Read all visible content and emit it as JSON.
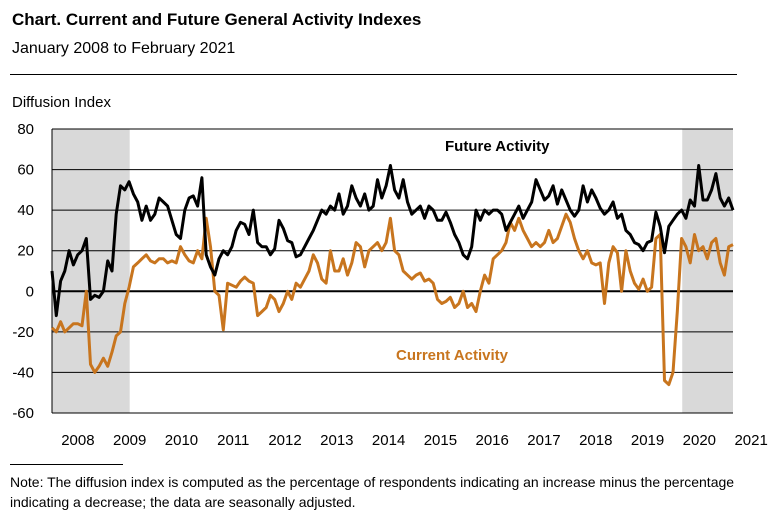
{
  "chart_data": {
    "type": "line",
    "title": "Chart. Current and Future General Activity Indexes",
    "subtitle": "January 2008 to February 2021",
    "ylabel": "Diffusion Index",
    "xlabel": "",
    "ylim": [
      -60,
      80
    ],
    "yticks": [
      80,
      60,
      40,
      20,
      0,
      -20,
      -40,
      -60
    ],
    "x_tick_labels": [
      "2008",
      "2009",
      "2010",
      "2011",
      "2012",
      "2013",
      "2014",
      "2015",
      "2016",
      "2017",
      "2018",
      "2019",
      "2020",
      "2021"
    ],
    "x_start": 2008.0,
    "x_end": 2021.15,
    "recessions": [
      {
        "start": 2008.0,
        "end": 2009.5
      },
      {
        "start": 2020.17,
        "end": 2021.15
      }
    ],
    "zero_line": true,
    "grid": "horizontal",
    "note": "Note: The diffusion index is computed as the percentage of respondents indicating an increase minus the percentage indicating a decrease; the data are seasonally adjusted.",
    "series": [
      {
        "name": "Future Activity",
        "color": "#000000",
        "label_position": "top-right",
        "values": [
          10,
          -12,
          5,
          10,
          20,
          13,
          18,
          20,
          26,
          -4,
          -2,
          -3,
          0,
          15,
          10,
          38,
          52,
          50,
          54,
          48,
          44,
          35,
          42,
          35,
          38,
          46,
          44,
          42,
          35,
          28,
          26,
          40,
          46,
          47,
          42,
          56,
          18,
          12,
          8,
          16,
          20,
          18,
          22,
          30,
          34,
          33,
          28,
          40,
          24,
          22,
          22,
          18,
          21,
          35,
          31,
          25,
          24,
          17,
          18,
          22,
          26,
          30,
          35,
          40,
          38,
          42,
          40,
          48,
          38,
          42,
          52,
          46,
          42,
          48,
          40,
          42,
          55,
          46,
          52,
          62,
          50,
          46,
          55,
          44,
          38,
          40,
          42,
          36,
          42,
          40,
          35,
          35,
          39,
          34,
          28,
          24,
          18,
          16,
          22,
          40,
          35,
          40,
          38,
          40,
          40,
          38,
          30,
          34,
          38,
          42,
          36,
          40,
          44,
          55,
          50,
          45,
          47,
          52,
          43,
          50,
          45,
          40,
          37,
          40,
          52,
          44,
          50,
          46,
          41,
          38,
          40,
          44,
          36,
          38,
          30,
          28,
          24,
          23,
          20,
          24,
          25,
          39,
          32,
          19,
          32,
          35,
          38,
          40,
          36,
          45,
          42,
          62,
          45,
          45,
          50,
          58,
          46,
          42,
          46,
          40
        ]
      },
      {
        "name": "Current Activity",
        "color": "#c8751e",
        "label_position": "bottom-center",
        "values": [
          -18,
          -20,
          -15,
          -20,
          -18,
          -16,
          -16,
          -17,
          0,
          -36,
          -40,
          -37,
          -33,
          -37,
          -30,
          -22,
          -20,
          -6,
          2,
          12,
          14,
          16,
          18,
          15,
          14,
          16,
          16,
          14,
          15,
          14,
          22,
          18,
          15,
          14,
          20,
          16,
          36,
          22,
          0,
          -2,
          -19,
          4,
          3,
          2,
          5,
          7,
          5,
          4,
          -12,
          -10,
          -8,
          -2,
          -4,
          -10,
          -6,
          0,
          -4,
          4,
          2,
          6,
          10,
          18,
          14,
          6,
          4,
          20,
          10,
          10,
          16,
          8,
          14,
          24,
          22,
          12,
          20,
          22,
          24,
          20,
          24,
          36,
          20,
          18,
          10,
          8,
          6,
          8,
          9,
          5,
          6,
          4,
          -4,
          -6,
          -5,
          -3,
          -8,
          -6,
          0,
          -8,
          -6,
          -10,
          0,
          8,
          4,
          16,
          18,
          20,
          24,
          34,
          30,
          36,
          30,
          26,
          22,
          24,
          22,
          24,
          30,
          24,
          26,
          32,
          38,
          34,
          26,
          20,
          16,
          20,
          14,
          13,
          14,
          -6,
          14,
          22,
          19,
          0,
          20,
          10,
          4,
          1,
          6,
          0,
          2,
          26,
          28,
          -44,
          -46,
          -40,
          -10,
          26,
          22,
          14,
          28,
          20,
          22,
          16,
          24,
          26,
          14,
          8,
          22,
          23
        ]
      }
    ]
  }
}
